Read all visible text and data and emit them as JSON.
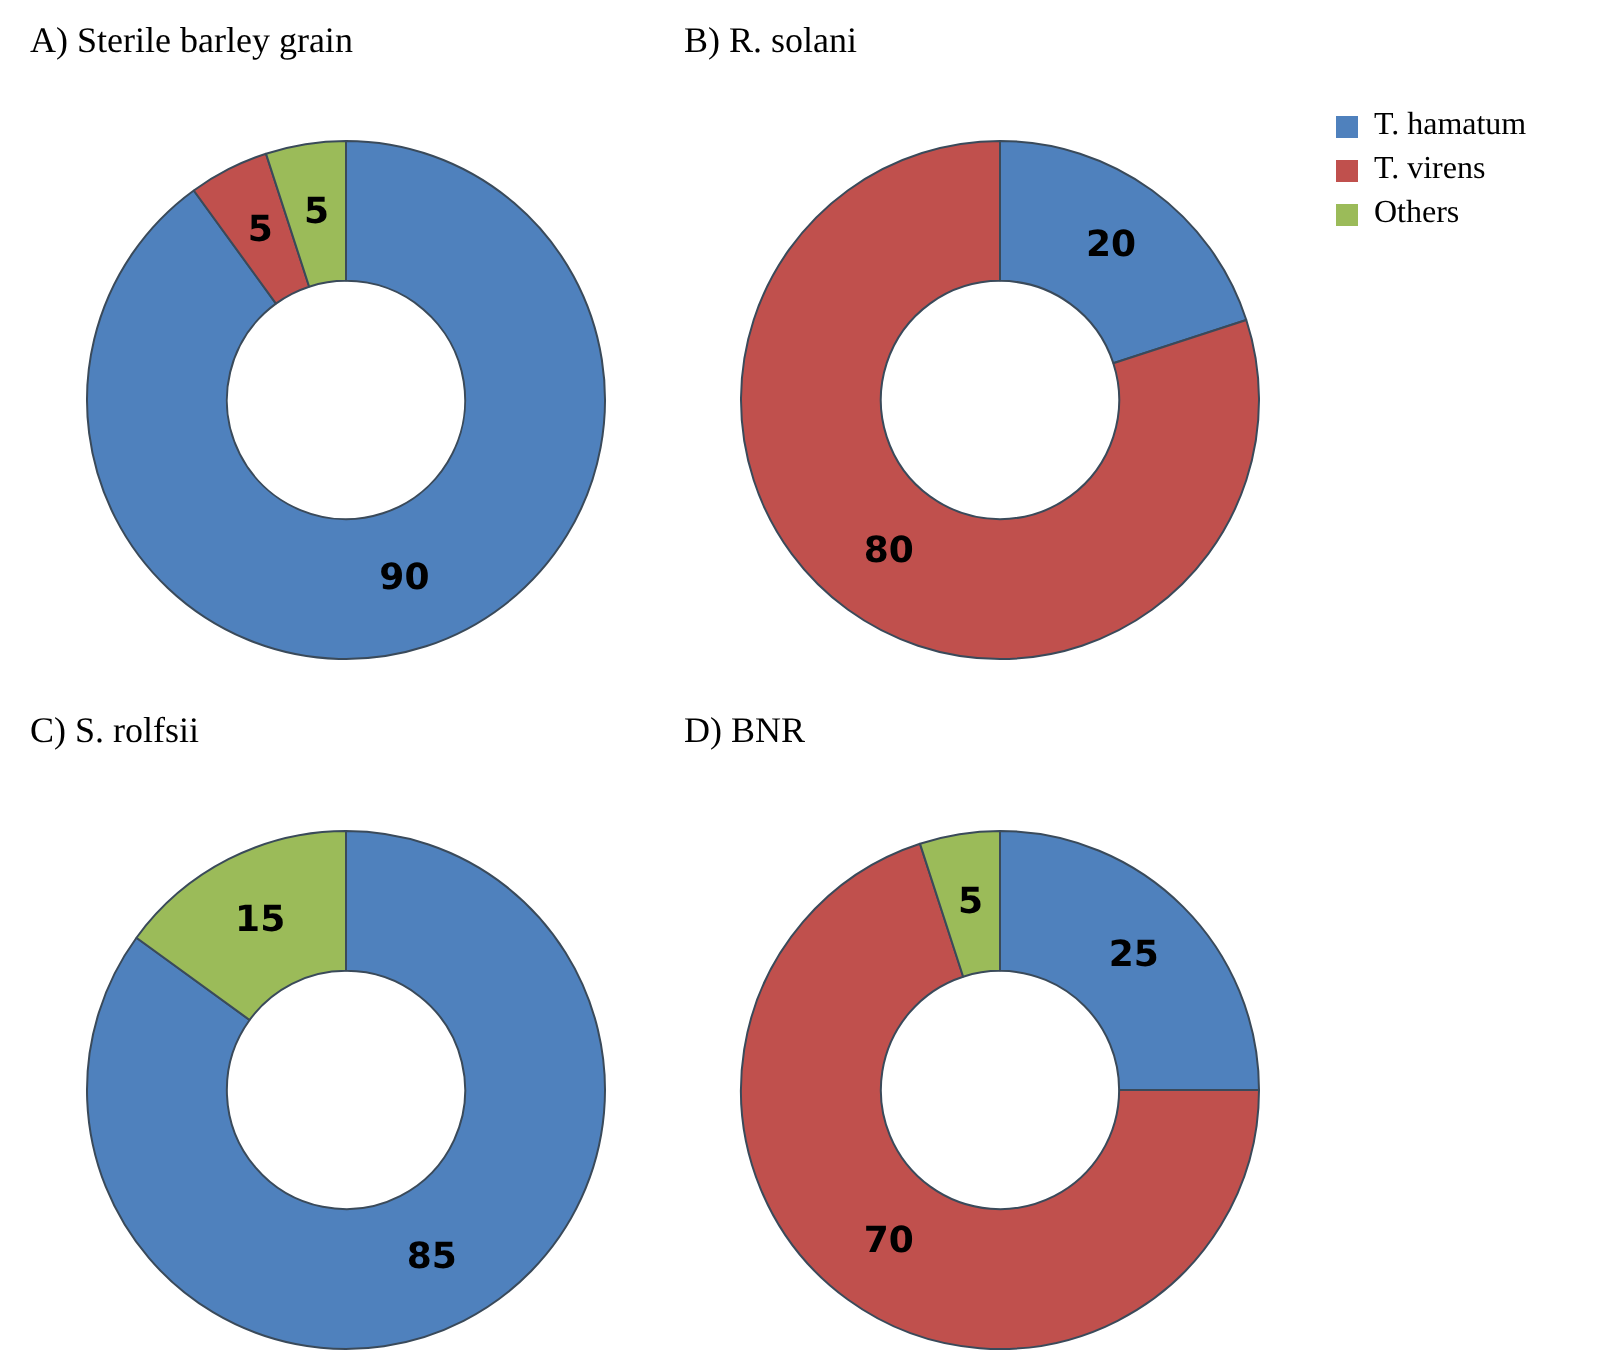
{
  "chart_data": [
    {
      "type": "donut",
      "title": "A)  Sterile  barley  grain",
      "categories": [
        "T. hamatum",
        "T. virens",
        "Others"
      ],
      "values": [
        90,
        5,
        5
      ],
      "colors": [
        "#4f81bd",
        "#c0504d",
        "#9bbb59"
      ],
      "data_labels": true,
      "legend": "right"
    },
    {
      "type": "donut",
      "title": "B)  R. solani",
      "categories": [
        null,
        null
      ],
      "values": [
        20,
        80
      ],
      "colors": [
        "#4f81bd",
        "#c0504d"
      ],
      "data_labels": true
    },
    {
      "type": "donut",
      "title": "C)  S. rolfsii",
      "categories": [
        null,
        null
      ],
      "values": [
        85,
        15
      ],
      "colors": [
        "#4f81bd",
        "#9bbb59"
      ],
      "data_labels": true
    },
    {
      "type": "donut",
      "title": "D)  BNR",
      "categories": [
        null,
        null,
        null
      ],
      "values": [
        25,
        70,
        5
      ],
      "colors": [
        "#4f81bd",
        "#c0504d",
        "#9bbb59"
      ],
      "data_labels": true
    }
  ]
}
